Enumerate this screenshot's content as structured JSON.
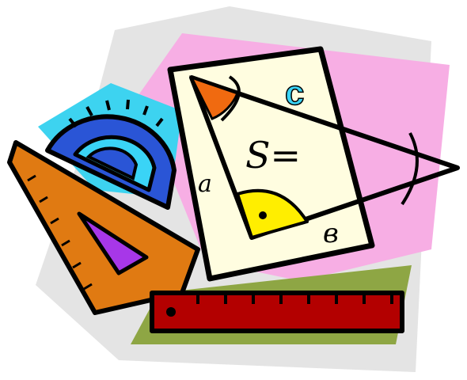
{
  "labels": {
    "area": "S=",
    "side_a": "a",
    "side_b": "в",
    "side_c": "c"
  },
  "colors": {
    "background": "#ffffff",
    "gray_shape": "#e4e4e4",
    "pink_shape": "#f7aee4",
    "cyan_shape": "#3dd3f0",
    "protractor": "#2a55d6",
    "protractor_inner": "#3ad4f6",
    "set_square": "#e07a12",
    "set_square_hole": "#a737e8",
    "paper": "#fffde0",
    "angle_orange": "#f06a10",
    "angle_yellow": "#ffee00",
    "ruler": "#b30000",
    "ruler_shadow": "#8ea644",
    "outline": "#000000"
  }
}
